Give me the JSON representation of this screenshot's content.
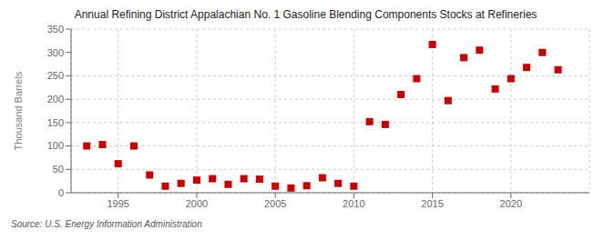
{
  "chart_data": {
    "type": "scatter",
    "title": "Annual Refining District Appalachian No. 1 Gasoline Blending Components Stocks at Refineries",
    "y_label": "Thousand Barrels",
    "annotations": [
      "Source: U.S. Energy Information Administration"
    ],
    "x": [
      1993,
      1994,
      1995,
      1996,
      1997,
      1998,
      1999,
      2000,
      2001,
      2002,
      2003,
      2004,
      2005,
      2006,
      2007,
      2008,
      2009,
      2010,
      2011,
      2012,
      2013,
      2014,
      2015,
      2016,
      2017,
      2018,
      2019,
      2020,
      2021,
      2022,
      2023
    ],
    "values": [
      100,
      103,
      62,
      100,
      38,
      14,
      20,
      27,
      30,
      18,
      30,
      29,
      14,
      10,
      15,
      32,
      20,
      14,
      152,
      146,
      210,
      244,
      317,
      197,
      289,
      305,
      222,
      244,
      268,
      300,
      263
    ],
    "color": "#cc0000",
    "marker": "square",
    "xlim": [
      1992,
      2025
    ],
    "ylim": [
      0,
      350
    ],
    "xticks": [
      1995,
      2000,
      2005,
      2010,
      2015,
      2020
    ],
    "yticks": [
      0,
      50,
      100,
      150,
      200,
      250,
      300,
      350
    ],
    "grid": true
  }
}
